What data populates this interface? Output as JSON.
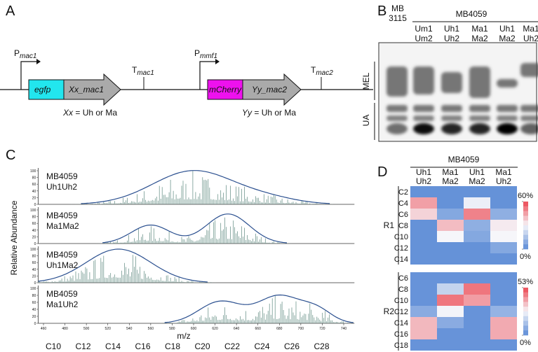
{
  "panel_a": {
    "label": "A",
    "promoters": [
      {
        "base": "P",
        "sub": "mac1"
      },
      {
        "base": "P",
        "sub": "mmf1"
      }
    ],
    "terminators": [
      {
        "base": "T",
        "sub": "mac1"
      },
      {
        "base": "T",
        "sub": "mac2"
      }
    ],
    "genes": [
      "egfp",
      "Xx_mac1",
      "mCherry",
      "Yy_mac2"
    ],
    "notes": [
      {
        "var": "Xx",
        "text": " = Uh or Ma"
      },
      {
        "var": "Yy",
        "text": " = Uh or Ma"
      }
    ]
  },
  "panel_b": {
    "label": "B",
    "control": [
      "MB",
      "3115"
    ],
    "group": "MB4059",
    "lanes": [
      [
        "Um1",
        "Um2"
      ],
      [
        "Uh1",
        "Uh2"
      ],
      [
        "Ma1",
        "Ma2"
      ],
      [
        "Uh1",
        "Ma2"
      ],
      [
        "Ma1",
        "Uh2"
      ]
    ],
    "bands": [
      "MEL",
      "UA"
    ]
  },
  "panel_c": {
    "label": "C",
    "ylabel": "Relative Abundance",
    "xlabel": "m/z",
    "spectra": [
      {
        "sample": "MB4059",
        "strain": "Uh1Uh2"
      },
      {
        "sample": "MB4059",
        "strain": "Ma1Ma2"
      },
      {
        "sample": "MB4059",
        "strain": "Uh1Ma2"
      },
      {
        "sample": "MB4059",
        "strain": "Ma1Uh2"
      }
    ],
    "xlim": [
      455,
      750
    ],
    "xticks": [
      460,
      480,
      500,
      520,
      540,
      560,
      580,
      600,
      620,
      640,
      660,
      680,
      700,
      720,
      740
    ],
    "ylim": [
      0,
      100
    ],
    "yticks": [
      0,
      20,
      40,
      60,
      80,
      100
    ],
    "chains": [
      "C10",
      "C12",
      "C14",
      "C16",
      "C18",
      "C20",
      "C22",
      "C24",
      "C26",
      "C28"
    ]
  },
  "panel_d": {
    "label": "D",
    "group": "MB4059",
    "columns": [
      [
        "Uh1",
        "Uh2"
      ],
      [
        "Ma1",
        "Ma2"
      ],
      [
        "Uh1",
        "Ma2"
      ],
      [
        "Ma1",
        "Uh2"
      ]
    ],
    "blocks": [
      {
        "name": "R1",
        "rows": [
          "C2",
          "C4",
          "C6",
          "C8",
          "C10",
          "C12",
          "C14"
        ],
        "values": [
          [
            2,
            2,
            2,
            2
          ],
          [
            45,
            2,
            28,
            2
          ],
          [
            36,
            8,
            50,
            10
          ],
          [
            2,
            40,
            10,
            32
          ],
          [
            2,
            30,
            8,
            30
          ],
          [
            2,
            2,
            2,
            8
          ],
          [
            2,
            2,
            2,
            2
          ]
        ],
        "scale": [
          {
            "value": 0,
            "label": "0%"
          },
          {
            "value": 60,
            "label": "60%"
          }
        ]
      },
      {
        "name": "R2",
        "rows": [
          "C6",
          "C8",
          "C10",
          "C12",
          "C14",
          "C16",
          "C18"
        ],
        "values": [
          [
            2,
            2,
            2,
            2
          ],
          [
            2,
            18,
            46,
            2
          ],
          [
            2,
            46,
            40,
            2
          ],
          [
            8,
            26,
            2,
            10
          ],
          [
            36,
            8,
            2,
            38
          ],
          [
            36,
            2,
            2,
            38
          ],
          [
            2,
            2,
            2,
            2
          ]
        ],
        "scale": [
          {
            "value": 0,
            "label": "0%"
          },
          {
            "value": 53,
            "label": "53%"
          }
        ]
      }
    ]
  }
}
